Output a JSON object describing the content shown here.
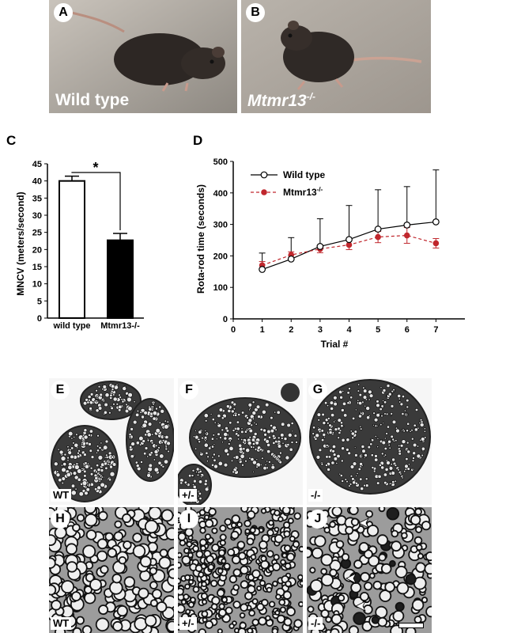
{
  "photos": {
    "a": {
      "letter": "A",
      "caption": "Wild type"
    },
    "b": {
      "letter": "B",
      "caption_main": "Mtmr13",
      "caption_sup": "-/-"
    }
  },
  "panel_c": {
    "letter": "C"
  },
  "panel_d": {
    "letter": "D"
  },
  "chart_data": [
    {
      "type": "bar",
      "categories": [
        "wild type",
        "Mtmr13-/-"
      ],
      "values": [
        40,
        22.7
      ],
      "errors": [
        1.4,
        2.0
      ],
      "ylabel": "MNCV (meters/second)",
      "xlabel": "",
      "ylim": [
        0,
        45
      ],
      "yticks": [
        0,
        5,
        10,
        15,
        20,
        25,
        30,
        35,
        40,
        45
      ],
      "bar_colors": [
        "#ffffff",
        "#000000"
      ],
      "significance": "*"
    },
    {
      "type": "line",
      "xlabel": "Trial #",
      "ylabel": "Rota-rod time (seconds)",
      "xlim": [
        0,
        8
      ],
      "ylim": [
        0,
        500
      ],
      "xticks": [
        0,
        1,
        2,
        3,
        4,
        5,
        6,
        7
      ],
      "yticks": [
        0,
        100,
        200,
        300,
        400,
        500
      ],
      "legend_position": "top-left",
      "x": [
        1,
        2,
        3,
        4,
        5,
        6,
        7
      ],
      "series": [
        {
          "name": "Wild type",
          "values": [
            157,
            190,
            230,
            252,
            285,
            298,
            308
          ],
          "errors_up": [
            52,
            68,
            88,
            108,
            125,
            122,
            165
          ],
          "color": "#000000",
          "marker": "open-circle"
        },
        {
          "name_main": "Mtmr13",
          "name_sup": "-/-",
          "values": [
            170,
            203,
            222,
            235,
            260,
            265,
            240
          ],
          "errors": [
            12,
            10,
            12,
            15,
            18,
            25,
            15
          ],
          "color": "#c0272d",
          "marker": "filled-circle"
        }
      ]
    }
  ],
  "micrographs": [
    {
      "letter": "E",
      "genotype": "WT"
    },
    {
      "letter": "F",
      "genotype": "+/-"
    },
    {
      "letter": "G",
      "genotype": "-/-"
    },
    {
      "letter": "H",
      "genotype": "WT"
    },
    {
      "letter": "I",
      "genotype": "+/-"
    },
    {
      "letter": "J",
      "genotype": "-/-"
    }
  ],
  "colors": {
    "photo_bg": "#b3aca4",
    "micro_bg": "#b8b8b8",
    "mutant": "#c0272d"
  }
}
